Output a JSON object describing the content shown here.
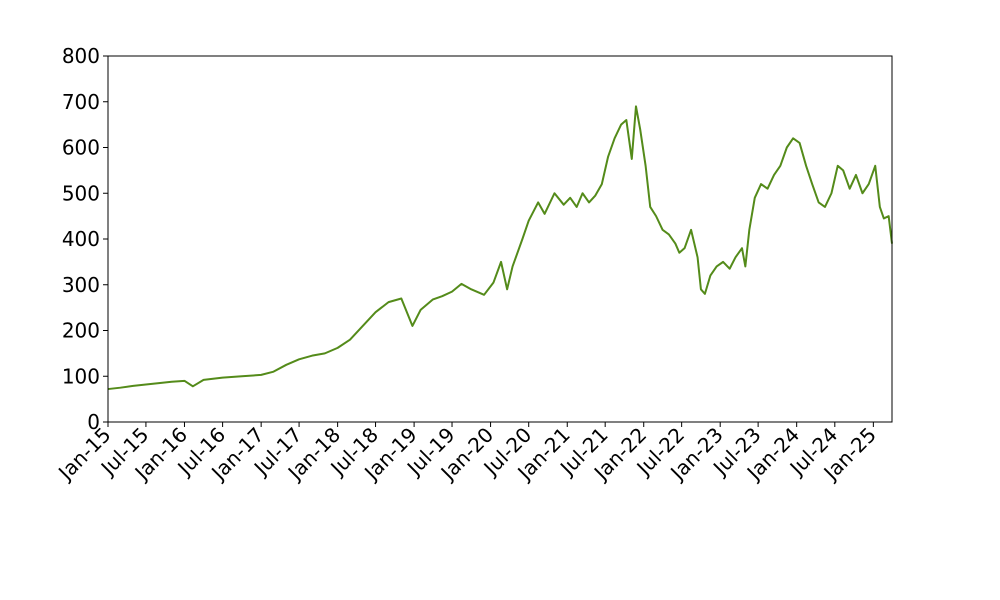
{
  "chart_data": {
    "type": "line",
    "title": "",
    "xlabel": "",
    "ylabel": "",
    "ylim": [
      0,
      800
    ],
    "xlim": [
      "2015-01-01",
      "2025-03-31"
    ],
    "y_ticks": [
      0,
      100,
      200,
      300,
      400,
      500,
      600,
      700,
      800
    ],
    "x_tick_labels": [
      "Jan-15",
      "Jul-15",
      "Jan-16",
      "Jul-16",
      "Jan-17",
      "Jul-17",
      "Jan-18",
      "Jul-18",
      "Jan-19",
      "Jul-19",
      "Jan-20",
      "Jul-20",
      "Jan-21",
      "Jul-21",
      "Jan-22",
      "Jul-22",
      "Jan-23",
      "Jul-23",
      "Jan-24",
      "Jul-24",
      "Jan-25"
    ],
    "x_tick_dates": [
      "2015-01-01",
      "2015-07-01",
      "2016-01-01",
      "2016-07-01",
      "2017-01-01",
      "2017-07-01",
      "2018-01-01",
      "2018-07-01",
      "2019-01-01",
      "2019-07-01",
      "2020-01-01",
      "2020-07-01",
      "2021-01-01",
      "2021-07-01",
      "2022-01-01",
      "2022-07-01",
      "2023-01-01",
      "2023-07-01",
      "2024-01-01",
      "2024-07-01",
      "2025-01-01"
    ],
    "grid": false,
    "series": [
      {
        "color": "#548b1a",
        "x": [
          "2015-01-01",
          "2015-03-01",
          "2015-05-01",
          "2015-07-01",
          "2015-09-01",
          "2015-11-01",
          "2016-01-01",
          "2016-02-10",
          "2016-04-01",
          "2016-07-01",
          "2016-10-01",
          "2017-01-01",
          "2017-03-01",
          "2017-05-01",
          "2017-07-01",
          "2017-09-01",
          "2017-11-01",
          "2018-01-01",
          "2018-03-01",
          "2018-05-01",
          "2018-07-01",
          "2018-09-01",
          "2018-11-01",
          "2018-12-24",
          "2019-02-01",
          "2019-04-01",
          "2019-05-15",
          "2019-07-01",
          "2019-08-15",
          "2019-10-01",
          "2019-12-01",
          "2020-01-15",
          "2020-02-20",
          "2020-03-20",
          "2020-04-15",
          "2020-06-01",
          "2020-07-01",
          "2020-08-15",
          "2020-09-15",
          "2020-11-01",
          "2020-12-15",
          "2021-01-15",
          "2021-02-15",
          "2021-03-15",
          "2021-04-15",
          "2021-05-15",
          "2021-06-15",
          "2021-07-15",
          "2021-08-15",
          "2021-09-15",
          "2021-10-10",
          "2021-11-05",
          "2021-11-25",
          "2021-12-15",
          "2022-01-10",
          "2022-02-01",
          "2022-03-01",
          "2022-04-01",
          "2022-05-01",
          "2022-06-01",
          "2022-06-20",
          "2022-07-15",
          "2022-08-15",
          "2022-09-15",
          "2022-10-01",
          "2022-10-20",
          "2022-11-15",
          "2022-12-15",
          "2023-01-15",
          "2023-02-15",
          "2023-03-15",
          "2023-04-15",
          "2023-05-01",
          "2023-05-20",
          "2023-06-15",
          "2023-07-15",
          "2023-08-15",
          "2023-09-15",
          "2023-10-15",
          "2023-11-15",
          "2023-12-15",
          "2024-01-15",
          "2024-02-15",
          "2024-03-15",
          "2024-04-15",
          "2024-05-15",
          "2024-06-15",
          "2024-07-15",
          "2024-08-10",
          "2024-09-10",
          "2024-10-10",
          "2024-11-10",
          "2024-12-10",
          "2025-01-10",
          "2025-02-01",
          "2025-02-20",
          "2025-03-15",
          "2025-03-31"
        ],
        "y": [
          72,
          75,
          79,
          82,
          85,
          88,
          90,
          78,
          92,
          97,
          100,
          103,
          110,
          125,
          137,
          145,
          150,
          162,
          180,
          210,
          240,
          262,
          270,
          210,
          245,
          268,
          275,
          285,
          302,
          290,
          278,
          305,
          350,
          290,
          340,
          400,
          440,
          480,
          455,
          500,
          475,
          490,
          470,
          500,
          480,
          495,
          520,
          580,
          620,
          650,
          660,
          575,
          690,
          640,
          560,
          470,
          450,
          420,
          410,
          390,
          370,
          380,
          420,
          360,
          290,
          280,
          320,
          340,
          350,
          335,
          360,
          380,
          340,
          420,
          490,
          520,
          510,
          540,
          560,
          600,
          620,
          610,
          560,
          520,
          480,
          470,
          500,
          560,
          550,
          510,
          540,
          500,
          520,
          560,
          470,
          445,
          450,
          390
        ]
      }
    ]
  }
}
